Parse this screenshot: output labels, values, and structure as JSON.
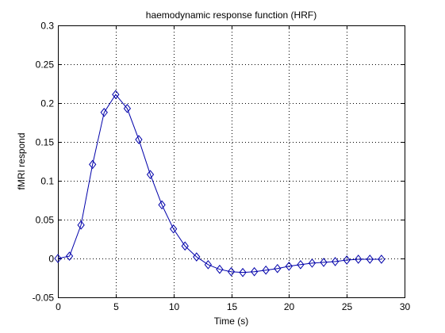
{
  "chart_data": {
    "type": "line",
    "title": "haemodynamic response function (HRF)",
    "xlabel": "Time (s)",
    "ylabel": "fMRI respond",
    "xlim": [
      0,
      30
    ],
    "ylim": [
      -0.05,
      0.3
    ],
    "grid": true,
    "x_ticks": [
      "0",
      "5",
      "10",
      "15",
      "20",
      "25",
      "30"
    ],
    "y_ticks": [
      "-0.05",
      "0",
      "0.05",
      "0.1",
      "0.15",
      "0.2",
      "0.25",
      "0.3"
    ],
    "x_tick_values": [
      0,
      5,
      10,
      15,
      20,
      25,
      30
    ],
    "y_tick_values": [
      -0.05,
      0,
      0.05,
      0.1,
      0.15,
      0.2,
      0.25,
      0.3
    ],
    "series": [
      {
        "color": "#0000aa",
        "marker": "diamond",
        "x": [
          0,
          1,
          2,
          3,
          4,
          5,
          6,
          7,
          8,
          9,
          10,
          11,
          12,
          13,
          14,
          15,
          16,
          17,
          18,
          19,
          20,
          21,
          22,
          23,
          24,
          25,
          26,
          27,
          28
        ],
        "values": [
          0,
          0.003,
          0.043,
          0.121,
          0.188,
          0.211,
          0.193,
          0.153,
          0.108,
          0.069,
          0.038,
          0.016,
          0.002,
          -0.008,
          -0.014,
          -0.017,
          -0.018,
          -0.017,
          -0.015,
          -0.013,
          -0.01,
          -0.008,
          -0.006,
          -0.005,
          -0.004,
          -0.002,
          -0.001,
          -0.001,
          -0.001
        ]
      }
    ]
  }
}
